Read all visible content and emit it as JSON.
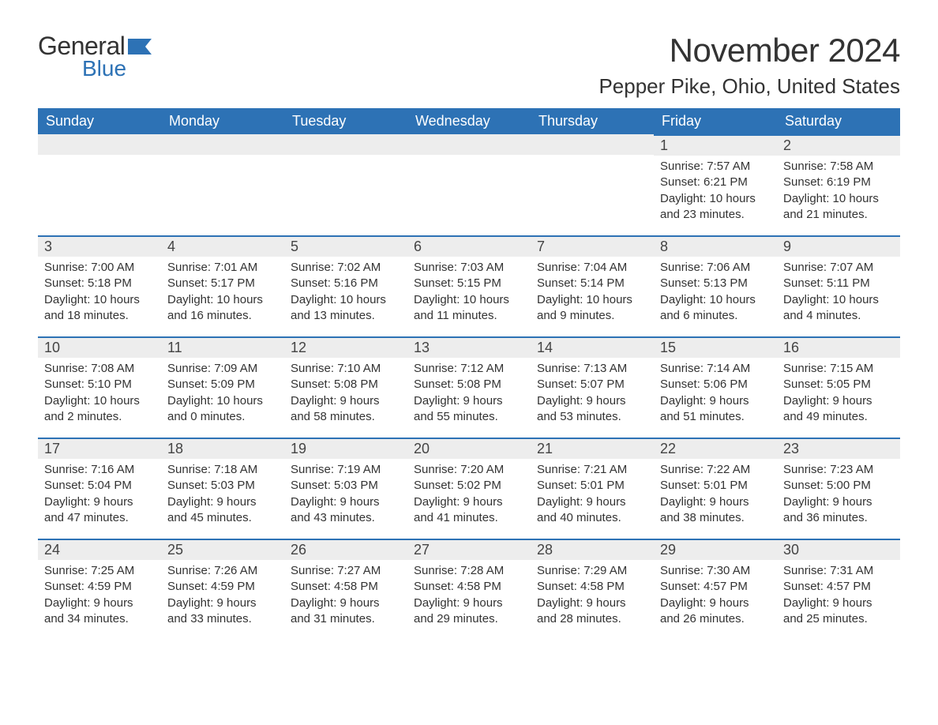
{
  "brand": {
    "part1": "General",
    "part2": "Blue"
  },
  "title": "November 2024",
  "location": "Pepper Pike, Ohio, United States",
  "colors": {
    "header_bg": "#2d72b5",
    "daynum_bg": "#ededed",
    "text": "#333333",
    "white": "#ffffff"
  },
  "weekdays": [
    "Sunday",
    "Monday",
    "Tuesday",
    "Wednesday",
    "Thursday",
    "Friday",
    "Saturday"
  ],
  "weeks": [
    [
      null,
      null,
      null,
      null,
      null,
      {
        "n": "1",
        "sunrise": "Sunrise: 7:57 AM",
        "sunset": "Sunset: 6:21 PM",
        "day1": "Daylight: 10 hours",
        "day2": "and 23 minutes."
      },
      {
        "n": "2",
        "sunrise": "Sunrise: 7:58 AM",
        "sunset": "Sunset: 6:19 PM",
        "day1": "Daylight: 10 hours",
        "day2": "and 21 minutes."
      }
    ],
    [
      {
        "n": "3",
        "sunrise": "Sunrise: 7:00 AM",
        "sunset": "Sunset: 5:18 PM",
        "day1": "Daylight: 10 hours",
        "day2": "and 18 minutes."
      },
      {
        "n": "4",
        "sunrise": "Sunrise: 7:01 AM",
        "sunset": "Sunset: 5:17 PM",
        "day1": "Daylight: 10 hours",
        "day2": "and 16 minutes."
      },
      {
        "n": "5",
        "sunrise": "Sunrise: 7:02 AM",
        "sunset": "Sunset: 5:16 PM",
        "day1": "Daylight: 10 hours",
        "day2": "and 13 minutes."
      },
      {
        "n": "6",
        "sunrise": "Sunrise: 7:03 AM",
        "sunset": "Sunset: 5:15 PM",
        "day1": "Daylight: 10 hours",
        "day2": "and 11 minutes."
      },
      {
        "n": "7",
        "sunrise": "Sunrise: 7:04 AM",
        "sunset": "Sunset: 5:14 PM",
        "day1": "Daylight: 10 hours",
        "day2": "and 9 minutes."
      },
      {
        "n": "8",
        "sunrise": "Sunrise: 7:06 AM",
        "sunset": "Sunset: 5:13 PM",
        "day1": "Daylight: 10 hours",
        "day2": "and 6 minutes."
      },
      {
        "n": "9",
        "sunrise": "Sunrise: 7:07 AM",
        "sunset": "Sunset: 5:11 PM",
        "day1": "Daylight: 10 hours",
        "day2": "and 4 minutes."
      }
    ],
    [
      {
        "n": "10",
        "sunrise": "Sunrise: 7:08 AM",
        "sunset": "Sunset: 5:10 PM",
        "day1": "Daylight: 10 hours",
        "day2": "and 2 minutes."
      },
      {
        "n": "11",
        "sunrise": "Sunrise: 7:09 AM",
        "sunset": "Sunset: 5:09 PM",
        "day1": "Daylight: 10 hours",
        "day2": "and 0 minutes."
      },
      {
        "n": "12",
        "sunrise": "Sunrise: 7:10 AM",
        "sunset": "Sunset: 5:08 PM",
        "day1": "Daylight: 9 hours",
        "day2": "and 58 minutes."
      },
      {
        "n": "13",
        "sunrise": "Sunrise: 7:12 AM",
        "sunset": "Sunset: 5:08 PM",
        "day1": "Daylight: 9 hours",
        "day2": "and 55 minutes."
      },
      {
        "n": "14",
        "sunrise": "Sunrise: 7:13 AM",
        "sunset": "Sunset: 5:07 PM",
        "day1": "Daylight: 9 hours",
        "day2": "and 53 minutes."
      },
      {
        "n": "15",
        "sunrise": "Sunrise: 7:14 AM",
        "sunset": "Sunset: 5:06 PM",
        "day1": "Daylight: 9 hours",
        "day2": "and 51 minutes."
      },
      {
        "n": "16",
        "sunrise": "Sunrise: 7:15 AM",
        "sunset": "Sunset: 5:05 PM",
        "day1": "Daylight: 9 hours",
        "day2": "and 49 minutes."
      }
    ],
    [
      {
        "n": "17",
        "sunrise": "Sunrise: 7:16 AM",
        "sunset": "Sunset: 5:04 PM",
        "day1": "Daylight: 9 hours",
        "day2": "and 47 minutes."
      },
      {
        "n": "18",
        "sunrise": "Sunrise: 7:18 AM",
        "sunset": "Sunset: 5:03 PM",
        "day1": "Daylight: 9 hours",
        "day2": "and 45 minutes."
      },
      {
        "n": "19",
        "sunrise": "Sunrise: 7:19 AM",
        "sunset": "Sunset: 5:03 PM",
        "day1": "Daylight: 9 hours",
        "day2": "and 43 minutes."
      },
      {
        "n": "20",
        "sunrise": "Sunrise: 7:20 AM",
        "sunset": "Sunset: 5:02 PM",
        "day1": "Daylight: 9 hours",
        "day2": "and 41 minutes."
      },
      {
        "n": "21",
        "sunrise": "Sunrise: 7:21 AM",
        "sunset": "Sunset: 5:01 PM",
        "day1": "Daylight: 9 hours",
        "day2": "and 40 minutes."
      },
      {
        "n": "22",
        "sunrise": "Sunrise: 7:22 AM",
        "sunset": "Sunset: 5:01 PM",
        "day1": "Daylight: 9 hours",
        "day2": "and 38 minutes."
      },
      {
        "n": "23",
        "sunrise": "Sunrise: 7:23 AM",
        "sunset": "Sunset: 5:00 PM",
        "day1": "Daylight: 9 hours",
        "day2": "and 36 minutes."
      }
    ],
    [
      {
        "n": "24",
        "sunrise": "Sunrise: 7:25 AM",
        "sunset": "Sunset: 4:59 PM",
        "day1": "Daylight: 9 hours",
        "day2": "and 34 minutes."
      },
      {
        "n": "25",
        "sunrise": "Sunrise: 7:26 AM",
        "sunset": "Sunset: 4:59 PM",
        "day1": "Daylight: 9 hours",
        "day2": "and 33 minutes."
      },
      {
        "n": "26",
        "sunrise": "Sunrise: 7:27 AM",
        "sunset": "Sunset: 4:58 PM",
        "day1": "Daylight: 9 hours",
        "day2": "and 31 minutes."
      },
      {
        "n": "27",
        "sunrise": "Sunrise: 7:28 AM",
        "sunset": "Sunset: 4:58 PM",
        "day1": "Daylight: 9 hours",
        "day2": "and 29 minutes."
      },
      {
        "n": "28",
        "sunrise": "Sunrise: 7:29 AM",
        "sunset": "Sunset: 4:58 PM",
        "day1": "Daylight: 9 hours",
        "day2": "and 28 minutes."
      },
      {
        "n": "29",
        "sunrise": "Sunrise: 7:30 AM",
        "sunset": "Sunset: 4:57 PM",
        "day1": "Daylight: 9 hours",
        "day2": "and 26 minutes."
      },
      {
        "n": "30",
        "sunrise": "Sunrise: 7:31 AM",
        "sunset": "Sunset: 4:57 PM",
        "day1": "Daylight: 9 hours",
        "day2": "and 25 minutes."
      }
    ]
  ]
}
